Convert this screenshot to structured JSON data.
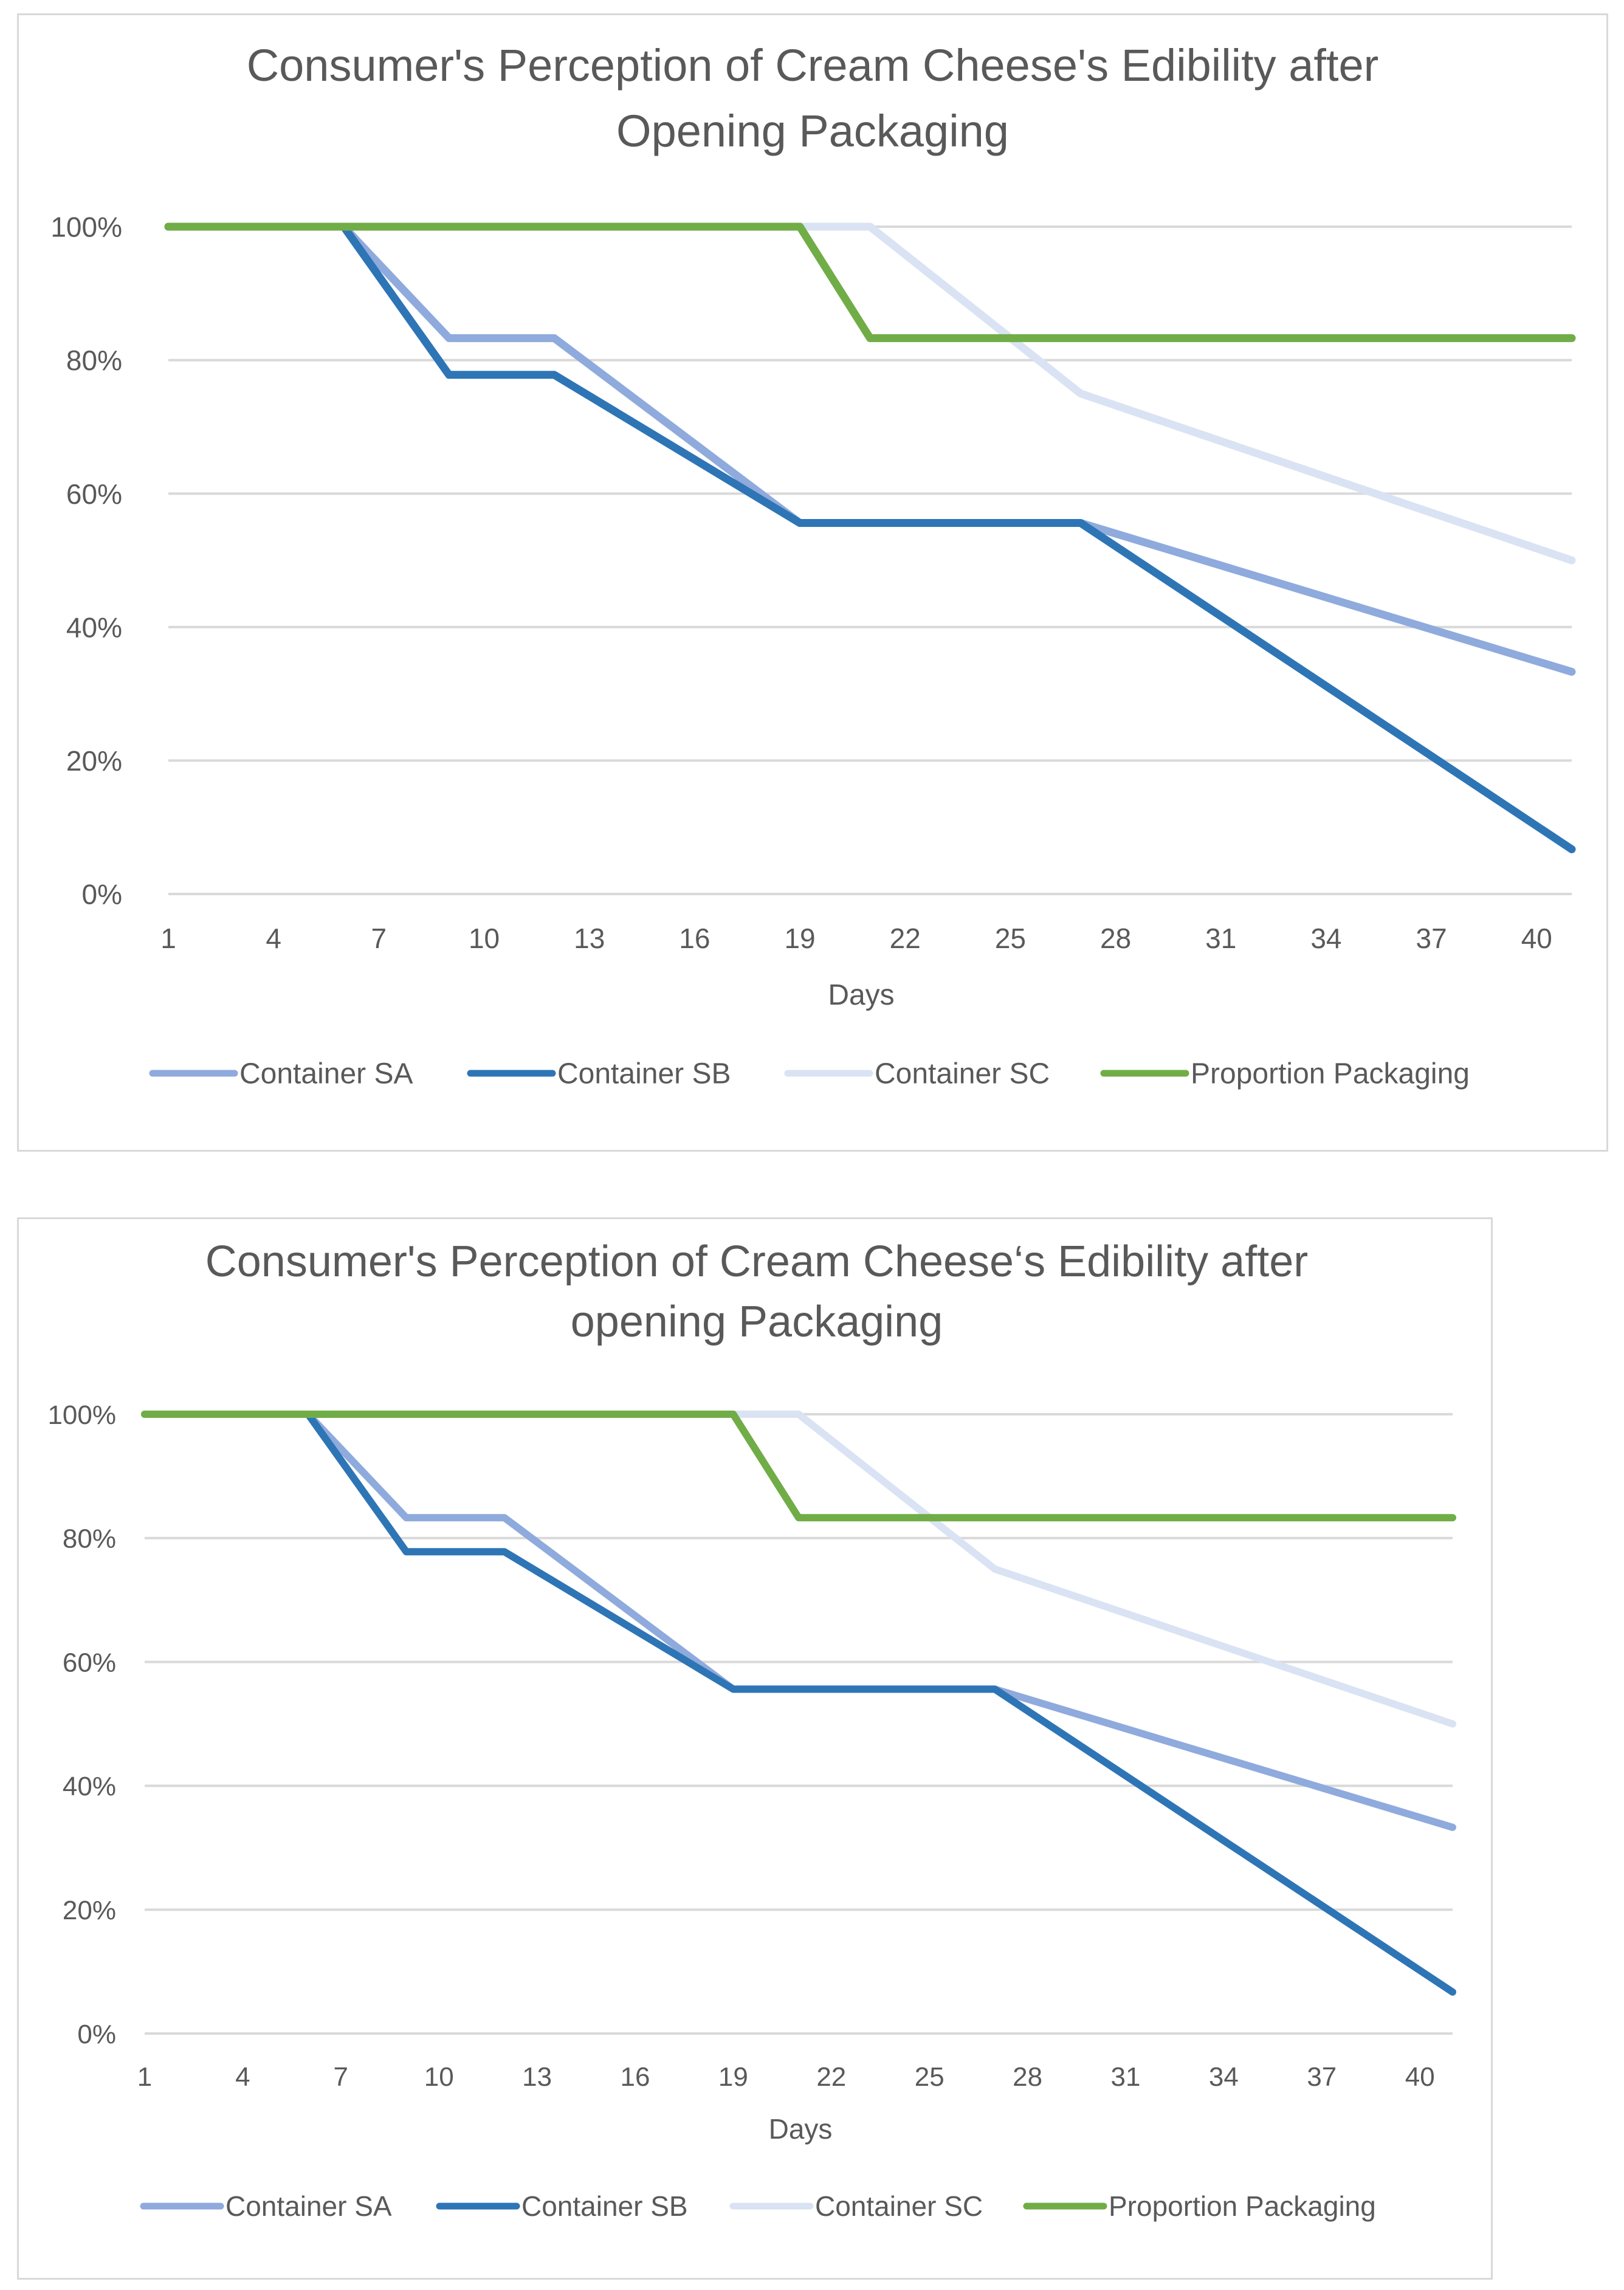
{
  "chart_data": [
    {
      "type": "line",
      "title_lines": [
        "Consumer's Perception of Cream Cheese's Edibility after",
        "Opening Packaging"
      ],
      "xlabel": "Days",
      "ylabel": "",
      "xlim": [
        1,
        41
      ],
      "ylim": [
        0,
        1
      ],
      "x_tick_values": [
        1,
        4,
        7,
        10,
        13,
        16,
        19,
        22,
        25,
        28,
        31,
        34,
        37,
        40
      ],
      "x_tick_labels": [
        "1",
        "4",
        "7",
        "10",
        "13",
        "16",
        "19",
        "22",
        "25",
        "28",
        "31",
        "34",
        "37",
        "40"
      ],
      "y_tick_values": [
        0,
        0.2,
        0.4,
        0.6,
        0.8,
        1.0
      ],
      "y_tick_labels": [
        "0%",
        "20%",
        "40%",
        "60%",
        "80%",
        "100%"
      ],
      "grid": true,
      "legend_position": "bottom",
      "series": [
        {
          "name": "Container SA",
          "color": "#8faadc",
          "x": [
            1,
            6,
            9,
            12,
            19,
            27,
            41
          ],
          "values": [
            1.0,
            1.0,
            0.833,
            0.833,
            0.556,
            0.556,
            0.333
          ]
        },
        {
          "name": "Container SB",
          "color": "#2e75b6",
          "x": [
            1,
            6,
            9,
            12,
            19,
            27,
            41
          ],
          "values": [
            1.0,
            1.0,
            0.778,
            0.778,
            0.556,
            0.556,
            0.067
          ]
        },
        {
          "name": "Container SC",
          "color": "#dae3f3",
          "x": [
            1,
            21,
            27,
            41
          ],
          "values": [
            1.0,
            1.0,
            0.75,
            0.5
          ]
        },
        {
          "name": "Proportion Packaging",
          "color": "#70ad47",
          "x": [
            1,
            19,
            21,
            41
          ],
          "values": [
            1.0,
            1.0,
            0.833,
            0.833
          ]
        }
      ]
    },
    {
      "type": "line",
      "title_lines": [
        "Consumer's Perception of Cream Cheese‘s Edibility after",
        "opening Packaging"
      ],
      "xlabel": "Days",
      "ylabel": "",
      "xlim": [
        1,
        41
      ],
      "ylim": [
        0,
        1
      ],
      "x_tick_values": [
        1,
        4,
        7,
        10,
        13,
        16,
        19,
        22,
        25,
        28,
        31,
        34,
        37,
        40
      ],
      "x_tick_labels": [
        "1",
        "4",
        "7",
        "10",
        "13",
        "16",
        "19",
        "22",
        "25",
        "28",
        "31",
        "34",
        "37",
        "40"
      ],
      "y_tick_values": [
        0,
        0.2,
        0.4,
        0.6,
        0.8,
        1.0
      ],
      "y_tick_labels": [
        "0%",
        "20%",
        "40%",
        "60%",
        "80%",
        "100%"
      ],
      "grid": true,
      "legend_position": "bottom",
      "series": [
        {
          "name": "Container SA",
          "color": "#8faadc",
          "x": [
            1,
            6,
            9,
            12,
            19,
            27,
            41
          ],
          "values": [
            1.0,
            1.0,
            0.833,
            0.833,
            0.556,
            0.556,
            0.333
          ]
        },
        {
          "name": "Container SB",
          "color": "#2e75b6",
          "x": [
            1,
            6,
            9,
            12,
            19,
            27,
            41
          ],
          "values": [
            1.0,
            1.0,
            0.778,
            0.778,
            0.556,
            0.556,
            0.067
          ]
        },
        {
          "name": "Container SC",
          "color": "#dae3f3",
          "x": [
            1,
            21,
            27,
            41
          ],
          "values": [
            1.0,
            1.0,
            0.75,
            0.5
          ]
        },
        {
          "name": "Proportion Packaging",
          "color": "#70ad47",
          "x": [
            1,
            19,
            21,
            41
          ],
          "values": [
            1.0,
            1.0,
            0.833,
            0.833
          ]
        }
      ]
    }
  ]
}
